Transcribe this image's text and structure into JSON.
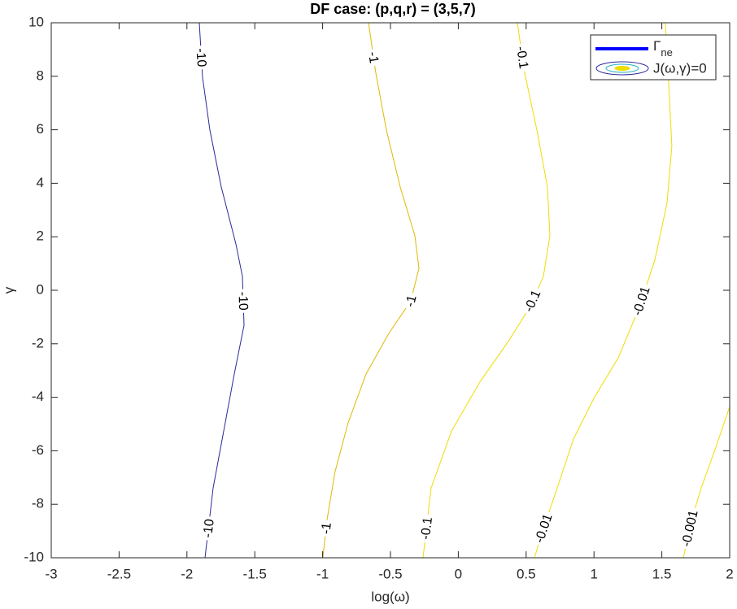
{
  "chart_data": {
    "type": "contour",
    "title": "DF case: (p,q,r) = (3,5,7)",
    "xlabel": "log(ω)",
    "ylabel": "γ",
    "xlim": [
      -3,
      2
    ],
    "ylim": [
      -10,
      10
    ],
    "xticks": [
      -3,
      -2.5,
      -2,
      -1.5,
      -1,
      -0.5,
      0,
      0.5,
      1,
      1.5,
      2
    ],
    "yticks": [
      -10,
      -8,
      -6,
      -4,
      -2,
      0,
      2,
      4,
      6,
      8,
      10
    ],
    "legend_position": "upper right",
    "legend": [
      {
        "label": "Γ",
        "subscript": "ne",
        "color": "#0000ff"
      },
      {
        "label": "J(ω,γ)=0"
      }
    ],
    "contours": [
      {
        "level": -10,
        "color": "#2a2a9a",
        "x": [
          -1.909,
          -1.885,
          -1.831,
          -1.747,
          -1.639,
          -1.591,
          -1.579,
          -1.651,
          -1.729,
          -1.807,
          -1.867
        ],
        "y": [
          10,
          7.96,
          5.99,
          3.86,
          1.73,
          0.52,
          -1.31,
          -3.13,
          -5.26,
          -7.39,
          -10
        ]
      },
      {
        "level": -1,
        "color": "#e0b800",
        "x": [
          -0.662,
          -0.608,
          -0.53,
          -0.428,
          -0.32,
          -0.29,
          -0.35,
          -0.512,
          -0.68,
          -0.812,
          -0.908,
          -0.968,
          -0.998
        ],
        "y": [
          10,
          8.12,
          5.99,
          3.86,
          2.04,
          0.82,
          -0.4,
          -1.61,
          -3.13,
          -4.95,
          -6.78,
          -8.6,
          -10
        ]
      },
      {
        "level": -0.1,
        "color": "#eedd00",
        "x": [
          0.435,
          0.489,
          0.579,
          0.657,
          0.675,
          0.627,
          0.519,
          0.369,
          0.159,
          -0.05,
          -0.2,
          -0.26
        ],
        "y": [
          10,
          8.12,
          5.99,
          3.86,
          2.04,
          0.52,
          -0.7,
          -1.91,
          -3.43,
          -5.26,
          -7.39,
          -10
        ]
      },
      {
        "level": -0.01,
        "color": "#eedd00",
        "x": [
          1.526,
          1.55,
          1.574,
          1.538,
          1.448,
          1.329,
          1.179,
          0.999,
          0.849,
          0.729,
          0.627,
          0.561
        ],
        "y": [
          10,
          7.81,
          5.38,
          3.25,
          1.12,
          -0.7,
          -2.52,
          -4.04,
          -5.56,
          -7.39,
          -8.91,
          -10
        ]
      },
      {
        "level": -0.001,
        "color": "#eedd00",
        "x": [
          2.0,
          1.898,
          1.79,
          1.718,
          1.658
        ],
        "y": [
          -4.35,
          -5.87,
          -7.39,
          -8.6,
          -10
        ]
      }
    ]
  }
}
